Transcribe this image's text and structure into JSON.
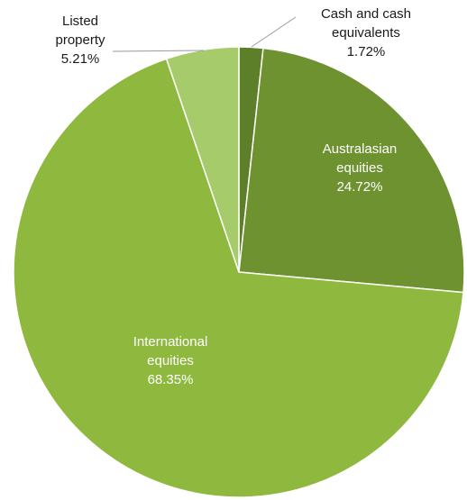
{
  "chart_data": {
    "type": "pie",
    "title": "",
    "slices": [
      {
        "lines": [
          "Cash and cash",
          "equivalents"
        ],
        "value_label": "1.72%",
        "value": 1.72,
        "color": "#5e7f2a"
      },
      {
        "lines": [
          "Australasian",
          "equities"
        ],
        "value_label": "24.72%",
        "value": 24.72,
        "color": "#6f9230"
      },
      {
        "lines": [
          "International",
          "equities"
        ],
        "value_label": "68.35%",
        "value": 68.35,
        "color": "#8fb83f"
      },
      {
        "lines": [
          "Listed",
          "property"
        ],
        "value_label": "5.21%",
        "value": 5.21,
        "color": "#a6cb6a"
      }
    ],
    "start_angle": "12 o'clock",
    "direction": "clockwise"
  }
}
